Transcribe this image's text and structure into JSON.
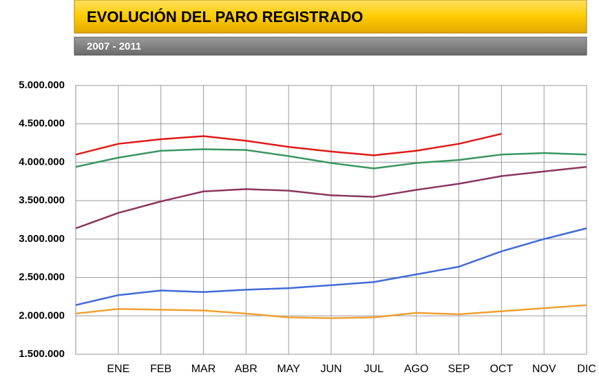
{
  "chart_data": {
    "type": "line",
    "title": "EVOLUCIÓN DEL PARO REGISTRADO",
    "subtitle": "2007 - 2011",
    "categories": [
      null,
      "ENE",
      "FEB",
      "MAR",
      "ABR",
      "MAY",
      "JUN",
      "JUL",
      "AGO",
      "SEP",
      "OCT",
      "NOV",
      "DIC"
    ],
    "series": [
      {
        "color": "#f0a030",
        "values": [
          2030000,
          2090000,
          2080000,
          2070000,
          2030000,
          1980000,
          1970000,
          1980000,
          2040000,
          2020000,
          2060000,
          2100000,
          2140000
        ]
      },
      {
        "color": "#4169d8",
        "values": [
          2140000,
          2270000,
          2330000,
          2310000,
          2340000,
          2360000,
          2400000,
          2440000,
          2540000,
          2640000,
          2840000,
          3000000,
          3140000
        ]
      },
      {
        "color": "#8b3560",
        "values": [
          3140000,
          3340000,
          3490000,
          3620000,
          3650000,
          3630000,
          3570000,
          3550000,
          3640000,
          3720000,
          3820000,
          3880000,
          3940000
        ]
      },
      {
        "color": "#3a9660",
        "values": [
          3940000,
          4060000,
          4150000,
          4170000,
          4160000,
          4080000,
          3990000,
          3920000,
          3990000,
          4030000,
          4100000,
          4120000,
          4100000
        ]
      },
      {
        "color": "#e01818",
        "values": [
          4100000,
          4240000,
          4300000,
          4340000,
          4280000,
          4200000,
          4140000,
          4090000,
          4150000,
          4240000,
          4370000,
          null,
          null
        ]
      }
    ],
    "ylim": [
      1500000,
      5000000
    ],
    "yticks": [
      {
        "value": 1500000,
        "label": "1.500.000"
      },
      {
        "value": 2000000,
        "label": "2.000.000"
      },
      {
        "value": 2500000,
        "label": "2.500.000"
      },
      {
        "value": 3000000,
        "label": "3.000.000"
      },
      {
        "value": 3500000,
        "label": "3.500.000"
      },
      {
        "value": 4000000,
        "label": "4.000.000"
      },
      {
        "value": 4500000,
        "label": "4.500.000"
      },
      {
        "value": 5000000,
        "label": "5.000.000"
      }
    ],
    "grid": true
  }
}
